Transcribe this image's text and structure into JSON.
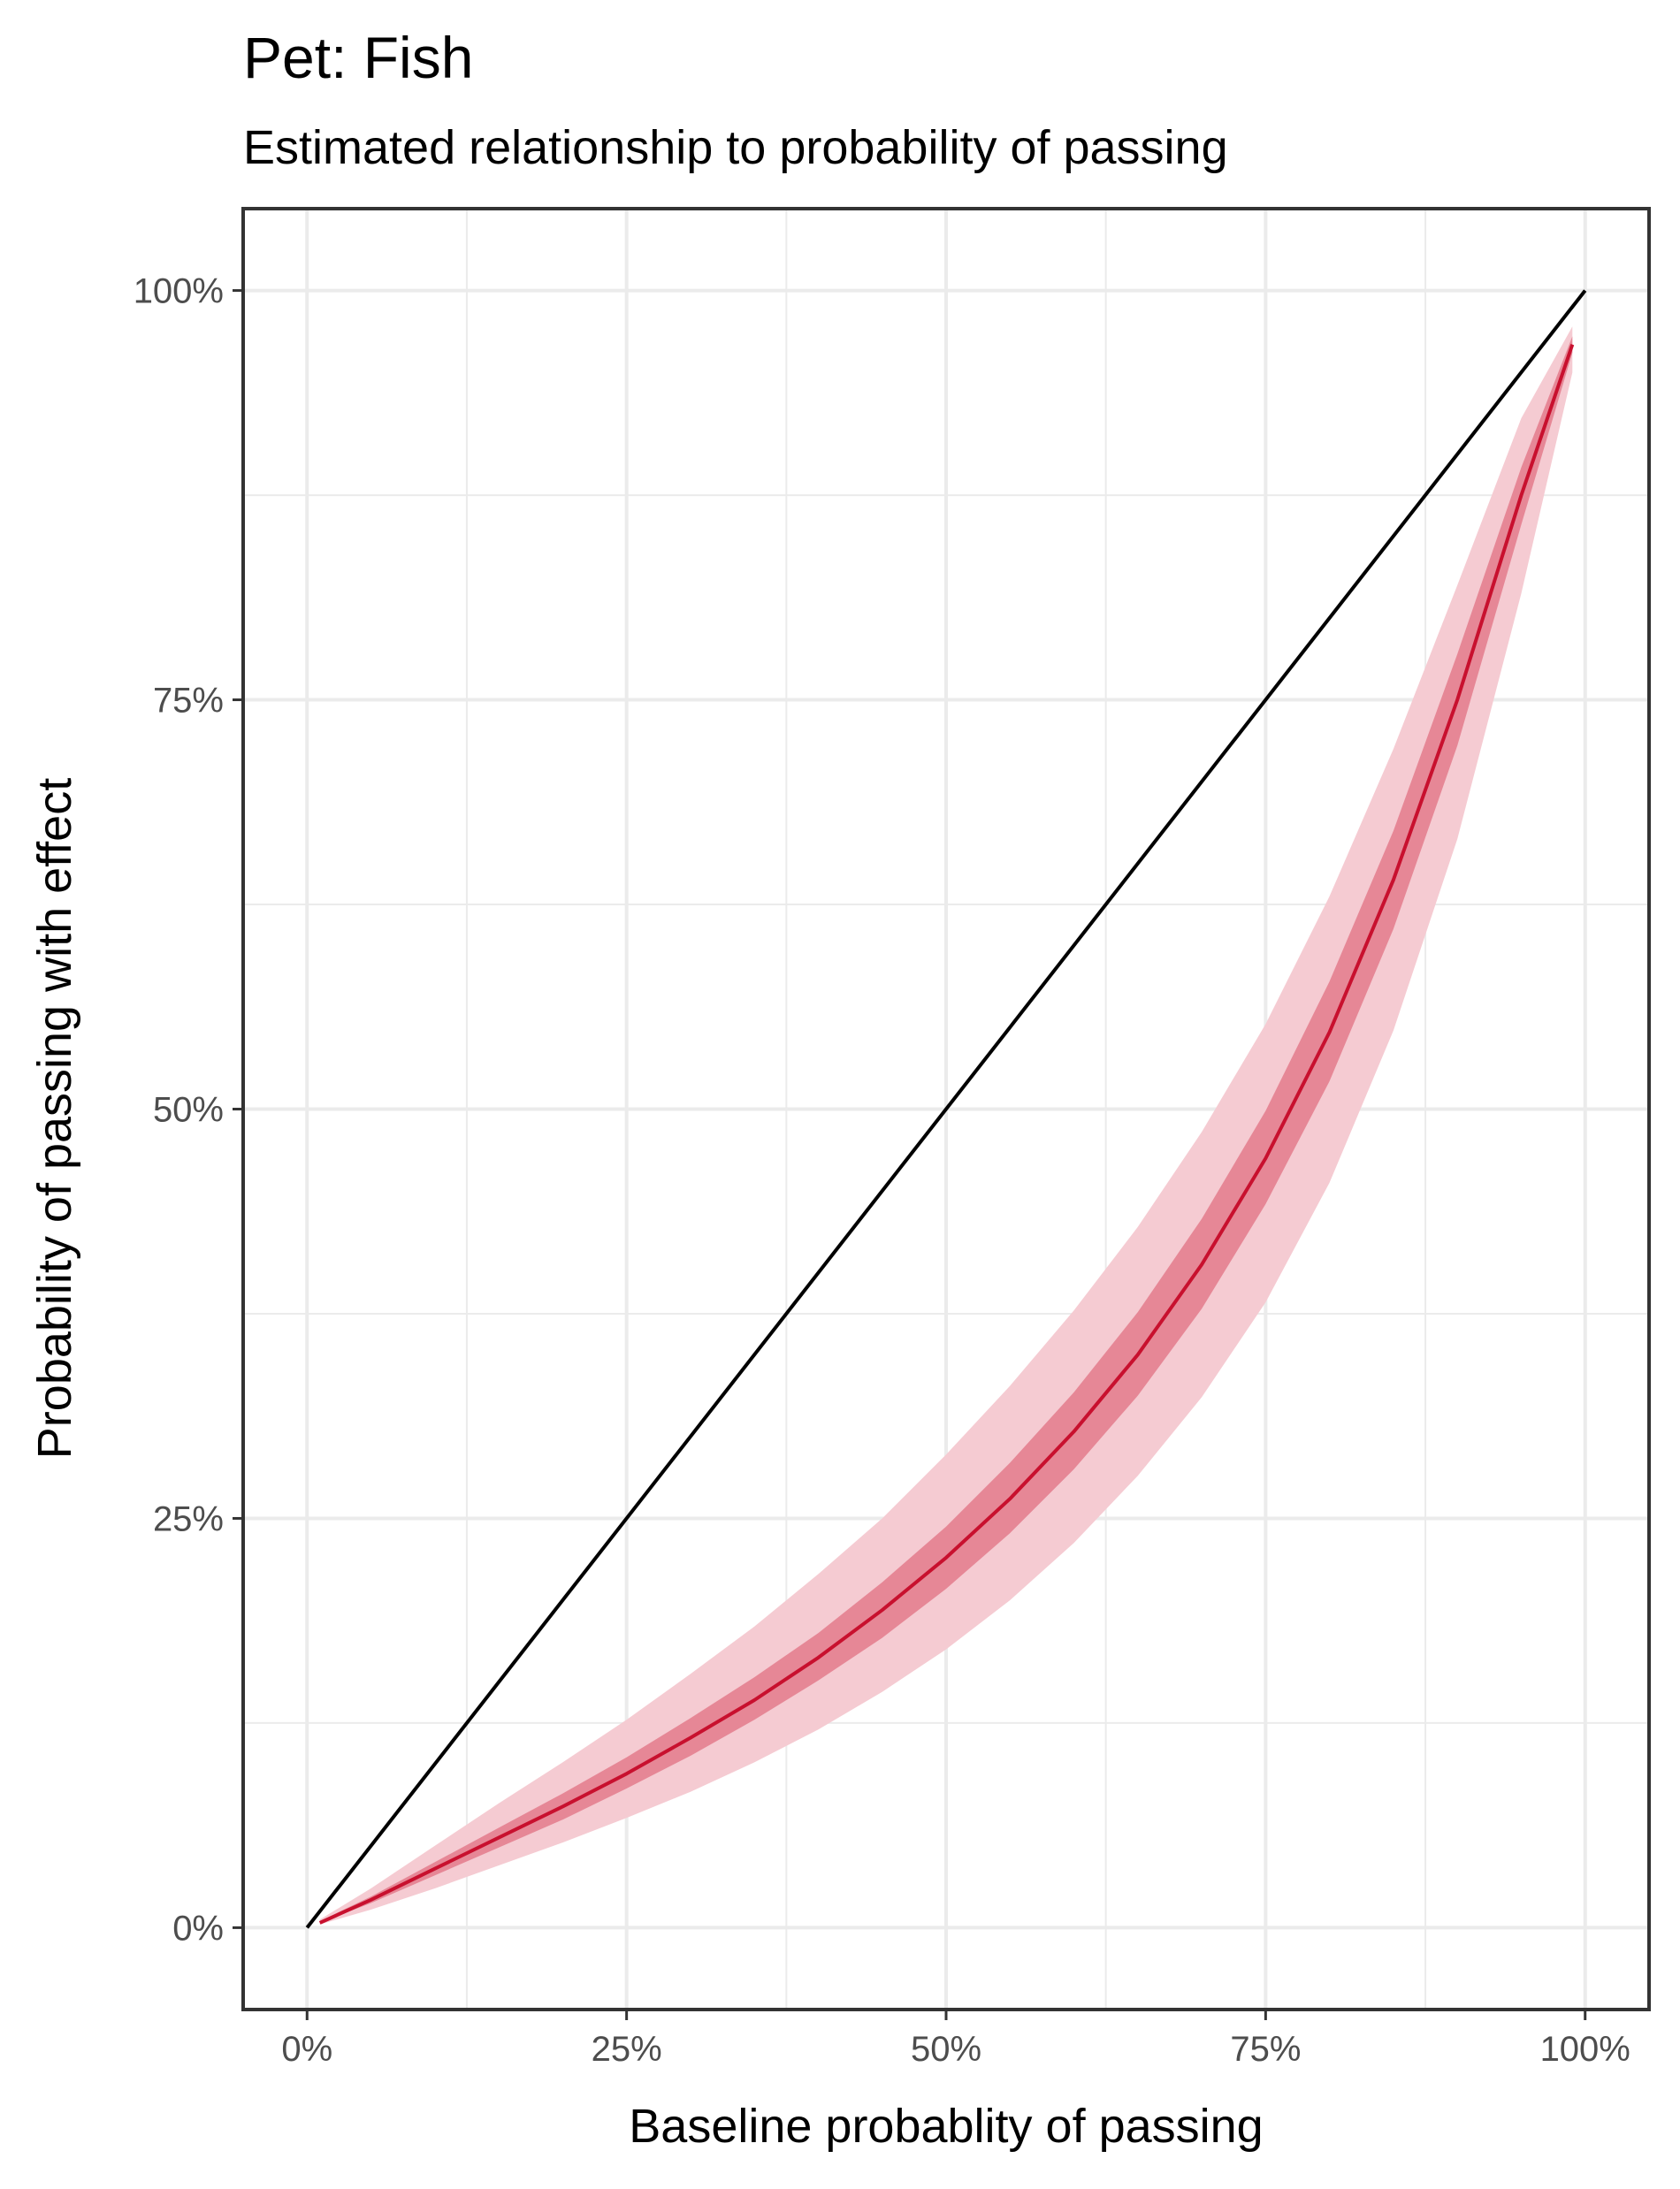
{
  "chart_data": {
    "type": "line",
    "title": "Pet: Fish",
    "subtitle": "Estimated relationship to probability of passing",
    "xlabel": "Baseline probablity of passing",
    "ylabel": "Probability of passing with effect",
    "xlim": [
      -0.05,
      1.05
    ],
    "ylim": [
      -0.05,
      1.05
    ],
    "x_ticks": [
      0,
      0.25,
      0.5,
      0.75,
      1.0
    ],
    "x_tick_labels": [
      "0%",
      "25%",
      "50%",
      "75%",
      "100%"
    ],
    "y_ticks": [
      0,
      0.25,
      0.5,
      0.75,
      1.0
    ],
    "y_tick_labels": [
      "0%",
      "25%",
      "50%",
      "75%",
      "100%"
    ],
    "grid": true,
    "legend": "none",
    "reference_line": {
      "x": [
        0,
        1
      ],
      "y": [
        0,
        1
      ],
      "color": "#000000"
    },
    "series": [
      {
        "x": [
          0.01,
          0.05,
          0.1,
          0.15,
          0.2,
          0.25,
          0.3,
          0.35,
          0.4,
          0.45,
          0.5,
          0.55,
          0.6,
          0.65,
          0.7,
          0.75,
          0.8,
          0.85,
          0.9,
          0.95,
          0.99
        ],
        "y": [
          0.003,
          0.017,
          0.036,
          0.055,
          0.074,
          0.094,
          0.116,
          0.139,
          0.165,
          0.194,
          0.226,
          0.262,
          0.303,
          0.35,
          0.405,
          0.47,
          0.547,
          0.64,
          0.75,
          0.875,
          0.967
        ],
        "inner_band_low": [
          0.003,
          0.015,
          0.032,
          0.049,
          0.066,
          0.085,
          0.105,
          0.127,
          0.151,
          0.177,
          0.207,
          0.241,
          0.28,
          0.325,
          0.378,
          0.442,
          0.517,
          0.61,
          0.722,
          0.857,
          0.962
        ],
        "inner_band_high": [
          0.004,
          0.019,
          0.04,
          0.061,
          0.082,
          0.104,
          0.128,
          0.153,
          0.18,
          0.211,
          0.245,
          0.284,
          0.327,
          0.376,
          0.433,
          0.499,
          0.578,
          0.67,
          0.778,
          0.892,
          0.972
        ],
        "outer_band_low": [
          0.002,
          0.011,
          0.024,
          0.038,
          0.052,
          0.067,
          0.083,
          0.101,
          0.121,
          0.144,
          0.17,
          0.2,
          0.235,
          0.276,
          0.324,
          0.382,
          0.455,
          0.548,
          0.665,
          0.815,
          0.95
        ],
        "outer_band_high": [
          0.005,
          0.024,
          0.05,
          0.076,
          0.101,
          0.127,
          0.155,
          0.184,
          0.216,
          0.25,
          0.289,
          0.331,
          0.377,
          0.428,
          0.486,
          0.552,
          0.63,
          0.72,
          0.82,
          0.922,
          0.978
        ],
        "line_color": "#c8102e",
        "inner_band_color": "#e07082",
        "outer_band_color": "#f5cbd2"
      }
    ]
  }
}
